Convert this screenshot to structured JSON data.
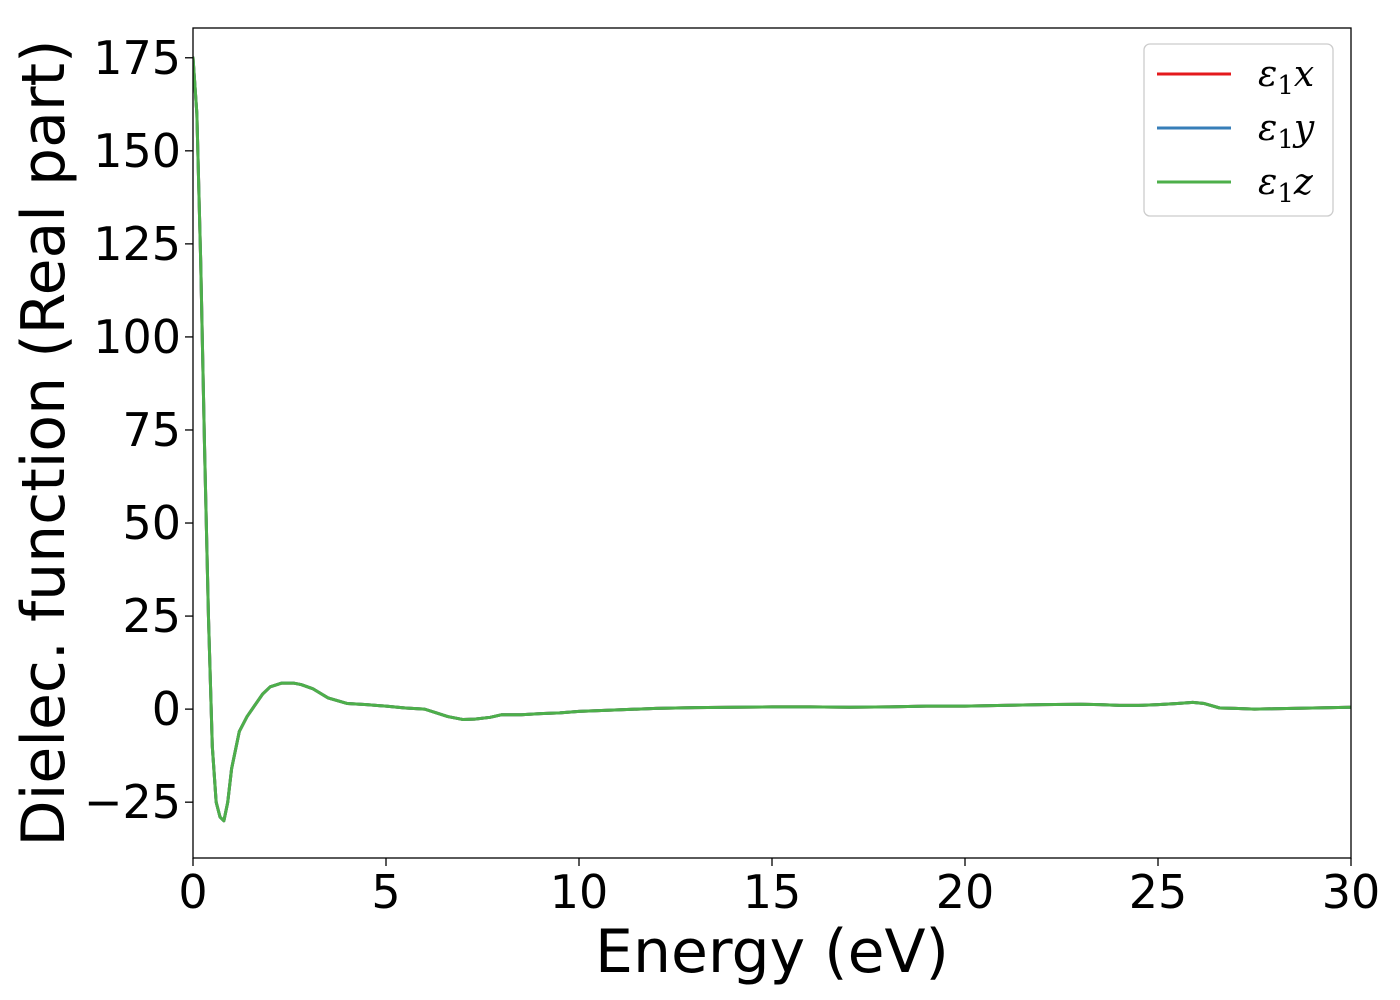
{
  "chart_data": {
    "type": "line",
    "title": "",
    "xlabel": "Energy (eV)",
    "ylabel": "Dielec. function (Real part)",
    "xlim": [
      0,
      30
    ],
    "ylim": [
      -40,
      183
    ],
    "xticks": [
      0,
      5,
      10,
      15,
      20,
      25,
      30
    ],
    "xtick_labels": [
      "0",
      "5",
      "10",
      "15",
      "20",
      "25",
      "30"
    ],
    "yticks": [
      -25,
      0,
      25,
      50,
      75,
      100,
      125,
      150,
      175
    ],
    "ytick_labels": [
      "−25",
      "0",
      "25",
      "50",
      "75",
      "100",
      "125",
      "150",
      "175"
    ],
    "grid": false,
    "legend_position": "top-right",
    "series": [
      {
        "name": "ε",
        "sub": "1",
        "suffix": "x",
        "color": "#e41a1c",
        "x": [
          0,
          0.1,
          0.2,
          0.3,
          0.4,
          0.5,
          0.6,
          0.7,
          0.8,
          0.9,
          1.0,
          1.2,
          1.4,
          1.6,
          1.8,
          2.0,
          2.3,
          2.6,
          2.8,
          3.1,
          3.5,
          4.0,
          4.5,
          5.0,
          5.5,
          6.0,
          6.3,
          6.6,
          7.0,
          7.3,
          7.7,
          8.0,
          8.5,
          9.0,
          9.5,
          10.0,
          11.0,
          12.0,
          13.0,
          14.0,
          15.0,
          16.0,
          17.0,
          18.0,
          19.0,
          20.0,
          21.0,
          22.0,
          23.0,
          23.5,
          24.0,
          24.5,
          25.0,
          25.5,
          25.9,
          26.2,
          26.6,
          27.0,
          27.5,
          28.0,
          29.0,
          30.0
        ],
        "y": [
          175,
          160,
          120,
          70,
          25,
          -10,
          -25,
          -29,
          -30,
          -25,
          -16,
          -6,
          -2,
          1,
          4,
          6,
          7,
          7,
          6.6,
          5.5,
          3,
          1.5,
          1.2,
          0.8,
          0.3,
          0,
          -1,
          -2,
          -2.8,
          -2.7,
          -2.2,
          -1.5,
          -1.5,
          -1.2,
          -1.0,
          -0.6,
          -0.2,
          0.2,
          0.4,
          0.5,
          0.6,
          0.6,
          0.5,
          0.6,
          0.8,
          0.8,
          1.0,
          1.2,
          1.3,
          1.2,
          1.0,
          1.0,
          1.2,
          1.5,
          1.8,
          1.5,
          0.3,
          0.2,
          0.0,
          0.1,
          0.3,
          0.5
        ]
      },
      {
        "name": "ε",
        "sub": "1",
        "suffix": "y",
        "color": "#377eb8",
        "x": [
          0,
          0.1,
          0.2,
          0.3,
          0.4,
          0.5,
          0.6,
          0.7,
          0.8,
          0.9,
          1.0,
          1.2,
          1.4,
          1.6,
          1.8,
          2.0,
          2.3,
          2.6,
          2.8,
          3.1,
          3.5,
          4.0,
          4.5,
          5.0,
          5.5,
          6.0,
          6.3,
          6.6,
          7.0,
          7.3,
          7.7,
          8.0,
          8.5,
          9.0,
          9.5,
          10.0,
          11.0,
          12.0,
          13.0,
          14.0,
          15.0,
          16.0,
          17.0,
          18.0,
          19.0,
          20.0,
          21.0,
          22.0,
          23.0,
          23.5,
          24.0,
          24.5,
          25.0,
          25.5,
          25.9,
          26.2,
          26.6,
          27.0,
          27.5,
          28.0,
          29.0,
          30.0
        ],
        "y": [
          175,
          160,
          120,
          70,
          25,
          -10,
          -25,
          -29,
          -30,
          -25,
          -16,
          -6,
          -2,
          1,
          4,
          6,
          7,
          7,
          6.6,
          5.5,
          3,
          1.5,
          1.2,
          0.8,
          0.3,
          0,
          -1,
          -2,
          -2.8,
          -2.7,
          -2.2,
          -1.5,
          -1.5,
          -1.2,
          -1.0,
          -0.6,
          -0.2,
          0.2,
          0.4,
          0.5,
          0.6,
          0.6,
          0.5,
          0.6,
          0.8,
          0.8,
          1.0,
          1.2,
          1.3,
          1.2,
          1.0,
          1.0,
          1.2,
          1.5,
          1.8,
          1.5,
          0.3,
          0.2,
          0.0,
          0.1,
          0.3,
          0.5
        ]
      },
      {
        "name": "ε",
        "sub": "1",
        "suffix": "z",
        "color": "#4daf4a",
        "x": [
          0,
          0.1,
          0.2,
          0.3,
          0.4,
          0.5,
          0.6,
          0.7,
          0.8,
          0.9,
          1.0,
          1.2,
          1.4,
          1.6,
          1.8,
          2.0,
          2.3,
          2.6,
          2.8,
          3.1,
          3.5,
          4.0,
          4.5,
          5.0,
          5.5,
          6.0,
          6.3,
          6.6,
          7.0,
          7.3,
          7.7,
          8.0,
          8.5,
          9.0,
          9.5,
          10.0,
          11.0,
          12.0,
          13.0,
          14.0,
          15.0,
          16.0,
          17.0,
          18.0,
          19.0,
          20.0,
          21.0,
          22.0,
          23.0,
          23.5,
          24.0,
          24.5,
          25.0,
          25.5,
          25.9,
          26.2,
          26.6,
          27.0,
          27.5,
          28.0,
          29.0,
          30.0
        ],
        "y": [
          175,
          160,
          120,
          70,
          25,
          -10,
          -25,
          -29,
          -30,
          -25,
          -16,
          -6,
          -2,
          1,
          4,
          6,
          7,
          7,
          6.6,
          5.5,
          3,
          1.5,
          1.2,
          0.8,
          0.3,
          0,
          -1,
          -2,
          -2.8,
          -2.7,
          -2.2,
          -1.5,
          -1.5,
          -1.2,
          -1.0,
          -0.6,
          -0.2,
          0.2,
          0.4,
          0.5,
          0.6,
          0.6,
          0.5,
          0.6,
          0.8,
          0.8,
          1.0,
          1.2,
          1.3,
          1.2,
          1.0,
          1.0,
          1.2,
          1.5,
          1.8,
          1.5,
          0.3,
          0.2,
          0.0,
          0.1,
          0.3,
          0.5
        ]
      }
    ]
  }
}
